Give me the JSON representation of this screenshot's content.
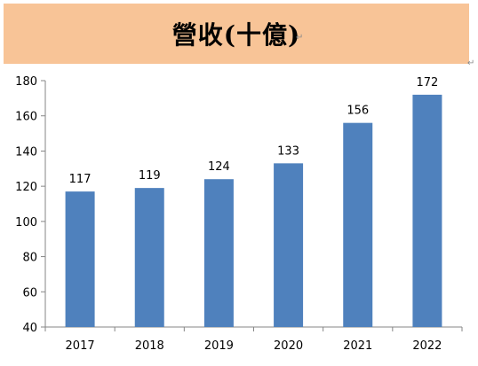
{
  "title": "營收(十億)",
  "paragraph_mark": "↵",
  "colors": {
    "banner": "#f8c497",
    "bar": "#4f81bd",
    "axis": "#868686",
    "text": "#000000"
  },
  "chart_data": {
    "type": "bar",
    "title": "營收(十億)",
    "categories": [
      "2017",
      "2018",
      "2019",
      "2020",
      "2021",
      "2022"
    ],
    "values": [
      117,
      119,
      124,
      133,
      156,
      172
    ],
    "ylim": [
      40,
      180
    ],
    "yticks": [
      40,
      60,
      80,
      100,
      120,
      140,
      160,
      180
    ],
    "xlabel": "",
    "ylabel": "",
    "grid": false,
    "legend": "none",
    "data_labels": true
  }
}
